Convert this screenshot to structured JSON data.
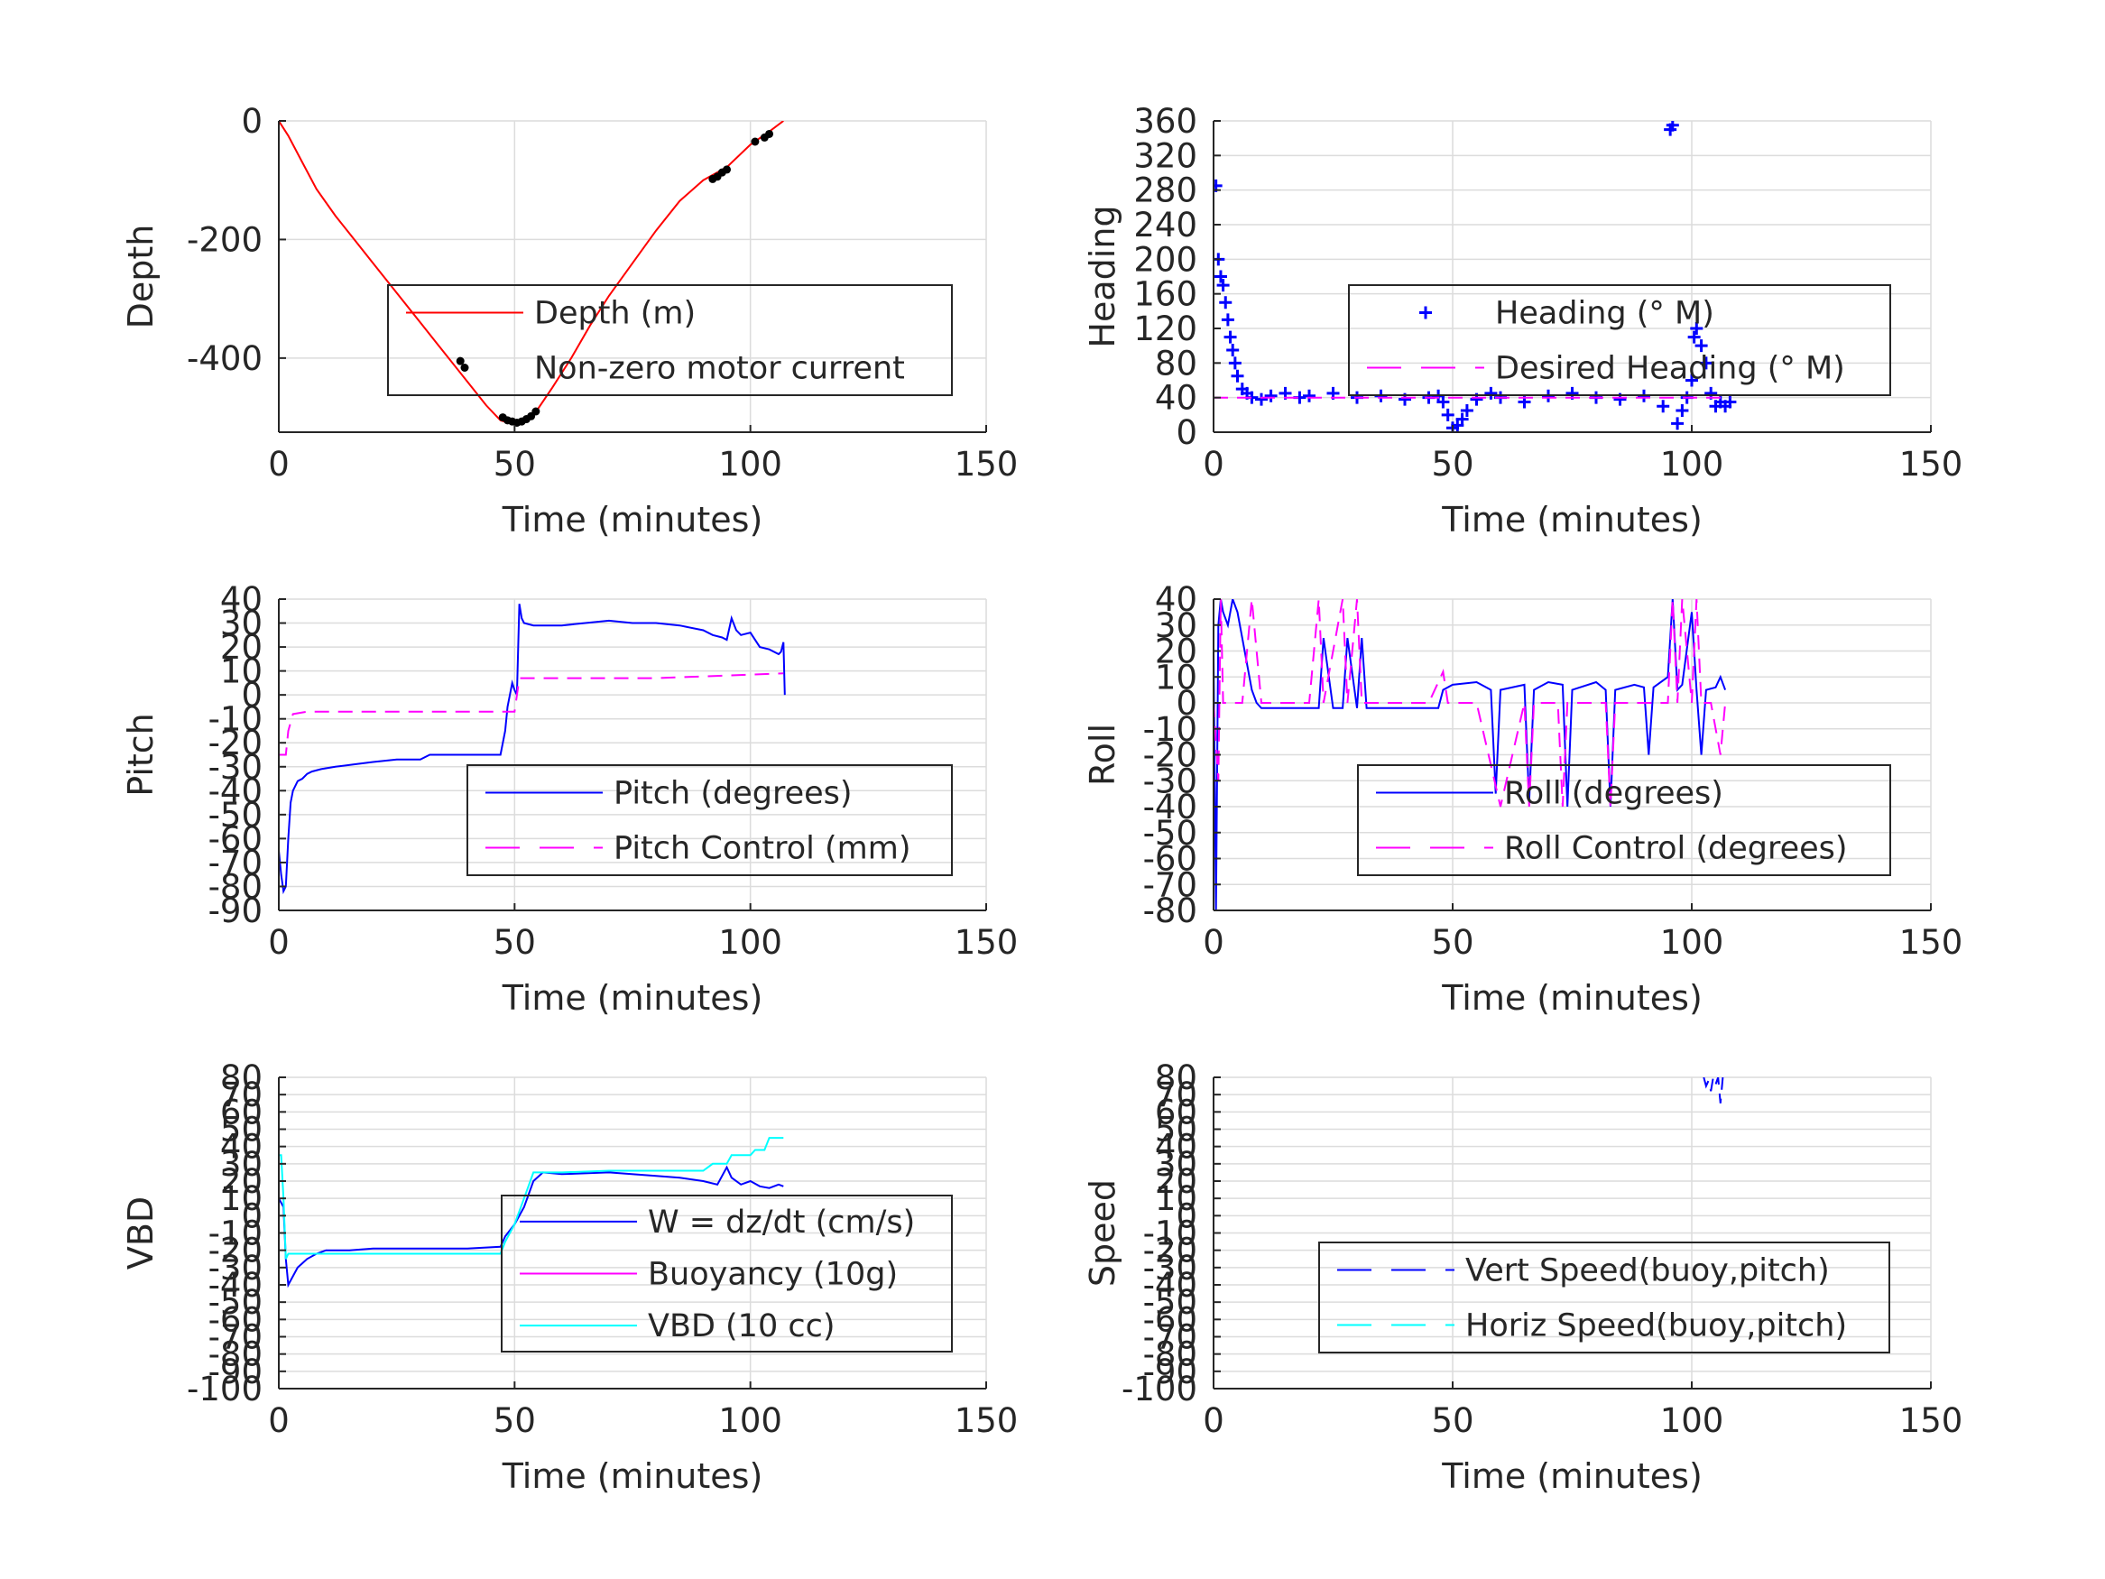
{
  "chart_data": [
    {
      "type": "line",
      "xlabel": "Time (minutes)",
      "ylabel": "Depth",
      "xlim": [
        0,
        150
      ],
      "ylim": [
        -525,
        0
      ],
      "xticks": [
        0,
        50,
        100,
        150
      ],
      "yticks": [
        0,
        -200,
        -400
      ],
      "ytick_labels": [
        "0",
        "-200",
        "-400"
      ],
      "legend_placement": "center-right",
      "series": [
        {
          "name": "Depth (m)",
          "style": "solid",
          "color": "#ff0000",
          "x": [
            0,
            2,
            5,
            8,
            12,
            16,
            20,
            25,
            30,
            35,
            40,
            44,
            47,
            49,
            50,
            51,
            52,
            53,
            54,
            55,
            58,
            62,
            66,
            70,
            75,
            80,
            85,
            90,
            95,
            100,
            104,
            107
          ],
          "y": [
            0,
            -25,
            -70,
            -115,
            -160,
            -200,
            -240,
            -290,
            -340,
            -390,
            -440,
            -480,
            -505,
            -510,
            -511,
            -510,
            -506,
            -500,
            -494,
            -485,
            -450,
            -400,
            -345,
            -295,
            -240,
            -185,
            -135,
            -100,
            -78,
            -40,
            -18,
            0
          ]
        },
        {
          "name": "Non-zero motor current",
          "style": "dots",
          "color": "#000000",
          "x": [
            38.5,
            47.5,
            48.5,
            49.5,
            50.5,
            51.5,
            52.5,
            53.5,
            54.5,
            92,
            93,
            94,
            95,
            101,
            103,
            104
          ],
          "y": [
            -405,
            -500,
            -505,
            -507,
            -509,
            -507,
            -503,
            -498,
            -490,
            -98,
            -94,
            -87,
            -82,
            -35,
            -28,
            -22
          ]
        }
      ]
    },
    {
      "type": "line",
      "xlabel": "Time (minutes)",
      "ylabel": "Heading",
      "xlim": [
        0,
        150
      ],
      "ylim": [
        0,
        360
      ],
      "xticks": [
        0,
        50,
        100,
        150
      ],
      "yticks": [
        0,
        40,
        80,
        120,
        160,
        200,
        240,
        280,
        320,
        360
      ],
      "ytick_labels": [
        "0",
        "40",
        "80",
        "120",
        "160",
        "200",
        "240",
        "280",
        "320",
        "360"
      ],
      "legend_placement": "center-right",
      "series": [
        {
          "name": "Heading (° M)",
          "style": "plus",
          "color": "#0000ff",
          "x": [
            0.5,
            1,
            1.5,
            2,
            2.5,
            3,
            3.5,
            4,
            4.5,
            5,
            6,
            7,
            8,
            10,
            12,
            15,
            18,
            20,
            25,
            30,
            35,
            40,
            45,
            47,
            48,
            49,
            50,
            51,
            52,
            53,
            55,
            58,
            60,
            65,
            70,
            75,
            80,
            85,
            90,
            94,
            95.5,
            96,
            97,
            98,
            99,
            100,
            100.5,
            101,
            102,
            103,
            104,
            105,
            106,
            107,
            108
          ],
          "y": [
            285,
            200,
            180,
            170,
            150,
            130,
            110,
            95,
            80,
            65,
            50,
            45,
            40,
            38,
            42,
            45,
            40,
            42,
            45,
            40,
            42,
            38,
            40,
            42,
            35,
            20,
            5,
            8,
            15,
            25,
            38,
            45,
            40,
            35,
            42,
            45,
            40,
            38,
            42,
            30,
            350,
            355,
            10,
            25,
            40,
            60,
            110,
            120,
            100,
            80,
            45,
            30,
            35,
            30,
            35
          ]
        },
        {
          "name": "Desired Heading (° M)",
          "style": "dashed",
          "color": "#ff00ff",
          "x": [
            0,
            108
          ],
          "y": [
            40,
            40
          ]
        }
      ]
    },
    {
      "type": "line",
      "xlabel": "Time (minutes)",
      "ylabel": "Pitch",
      "xlim": [
        0,
        150
      ],
      "ylim": [
        -90,
        40
      ],
      "xticks": [
        0,
        50,
        100,
        150
      ],
      "yticks": [
        40,
        30,
        20,
        10,
        0,
        -10,
        -20,
        -30,
        -40,
        -50,
        -60,
        -70,
        -80,
        -90
      ],
      "ytick_labels": [
        "40",
        "30",
        "20",
        "10",
        "0",
        "-10",
        "-20",
        "-30",
        "-40",
        "-50",
        "-60",
        "-70",
        "-80",
        "-90"
      ],
      "legend_placement": "bottom-right",
      "series": [
        {
          "name": "Pitch (degrees)",
          "style": "solid",
          "color": "#0000ff",
          "x": [
            0,
            0.5,
            1,
            1.5,
            2,
            2.5,
            3,
            4,
            5,
            6,
            7,
            9,
            12,
            16,
            20,
            25,
            30,
            32,
            40,
            47,
            48,
            48.5,
            49,
            49.5,
            50,
            50.5,
            51,
            51.5,
            52,
            54,
            60,
            65,
            70,
            75,
            80,
            85,
            90,
            92,
            94,
            95,
            96,
            97,
            98,
            100,
            102,
            104,
            106,
            106.5,
            107,
            107.3
          ],
          "y": [
            -65,
            -75,
            -82,
            -80,
            -60,
            -45,
            -40,
            -36,
            -35,
            -33,
            -32,
            -31,
            -30,
            -29,
            -28,
            -27,
            -27,
            -25,
            -25,
            -25,
            -15,
            -5,
            0,
            5,
            2,
            0,
            38,
            32,
            30,
            29,
            29,
            30,
            31,
            30,
            30,
            29,
            27,
            25,
            24,
            23,
            32,
            27,
            25,
            26,
            20,
            19,
            17,
            18,
            22,
            0
          ]
        },
        {
          "name": "Pitch Control (mm)",
          "style": "dashed",
          "color": "#ff00ff",
          "x": [
            0,
            1.5,
            2,
            3,
            6,
            30,
            50,
            51,
            80,
            107
          ],
          "y": [
            -25,
            -25,
            -15,
            -8,
            -7,
            -7,
            -7,
            7,
            7,
            9
          ]
        }
      ]
    },
    {
      "type": "line",
      "xlabel": "Time (minutes)",
      "ylabel": "Roll",
      "xlim": [
        0,
        150
      ],
      "ylim": [
        -80,
        40
      ],
      "xticks": [
        0,
        50,
        100,
        150
      ],
      "yticks": [
        40,
        30,
        20,
        10,
        0,
        -10,
        -20,
        -30,
        -40,
        -50,
        -60,
        -70,
        -80
      ],
      "ytick_labels": [
        "40",
        "30",
        "20",
        "10",
        "0",
        "-10",
        "-20",
        "-30",
        "-40",
        "-50",
        "-60",
        "-70",
        "-80"
      ],
      "legend_placement": "bottom-right",
      "series": [
        {
          "name": "Roll (degrees)",
          "style": "solid",
          "color": "#0000ff",
          "x": [
            0,
            0.5,
            1,
            1.5,
            2,
            3,
            4,
            5,
            6,
            7,
            8,
            9,
            10,
            15,
            20,
            22,
            23,
            25,
            27,
            28,
            30,
            31,
            32,
            40,
            47,
            48,
            50,
            55,
            58,
            59,
            60,
            65,
            66,
            67,
            70,
            73,
            74,
            75,
            80,
            82,
            83,
            84,
            88,
            90,
            91,
            92,
            95,
            96,
            97,
            98,
            100,
            101,
            102,
            103,
            105,
            106,
            107
          ],
          "y": [
            20,
            -80,
            30,
            40,
            35,
            30,
            40,
            35,
            25,
            15,
            5,
            0,
            -2,
            -2,
            -2,
            -2,
            25,
            -2,
            -2,
            25,
            -2,
            25,
            -2,
            -2,
            -2,
            5,
            7,
            8,
            5,
            -35,
            5,
            7,
            -38,
            5,
            8,
            7,
            -40,
            5,
            8,
            5,
            -40,
            5,
            7,
            6,
            -20,
            6,
            10,
            40,
            5,
            7,
            35,
            5,
            -20,
            5,
            6,
            10,
            5
          ]
        },
        {
          "name": "Roll Control (degrees)",
          "style": "dashed",
          "color": "#ff00ff",
          "x": [
            0,
            1,
            1.5,
            2,
            4,
            6,
            8,
            10,
            11,
            15,
            20,
            22,
            23,
            27,
            28,
            30,
            31,
            32,
            45,
            48,
            49,
            50,
            55,
            60,
            65,
            66,
            67,
            72,
            73,
            74,
            78,
            82,
            83,
            84,
            90,
            95,
            96,
            97,
            98,
            100,
            101,
            102,
            104,
            106,
            107
          ],
          "y": [
            0,
            -30,
            40,
            0,
            0,
            0,
            40,
            0,
            0,
            0,
            0,
            40,
            0,
            40,
            0,
            40,
            0,
            0,
            0,
            12,
            0,
            0,
            0,
            -40,
            0,
            -40,
            0,
            0,
            -40,
            0,
            0,
            0,
            -40,
            0,
            0,
            0,
            40,
            0,
            40,
            0,
            40,
            0,
            0,
            -20,
            0
          ]
        }
      ]
    },
    {
      "type": "line",
      "xlabel": "Time (minutes)",
      "ylabel": "VBD",
      "xlim": [
        0,
        150
      ],
      "ylim": [
        -100,
        80
      ],
      "xticks": [
        0,
        50,
        100,
        150
      ],
      "yticks": [
        80,
        70,
        60,
        50,
        40,
        30,
        20,
        10,
        0,
        -10,
        -20,
        -30,
        -40,
        -50,
        -60,
        -70,
        -80,
        -90,
        -100
      ],
      "ytick_labels": [
        "80",
        "70",
        "60",
        "50",
        "40",
        "30",
        "20",
        "10",
        "0",
        "-10",
        "-20",
        "-30",
        "-40",
        "-50",
        "-60",
        "-70",
        "-80",
        "-90",
        "-100"
      ],
      "legend_placement": "center-right",
      "series": [
        {
          "name": "W = dz/dt (cm/s)",
          "style": "solid",
          "color": "#0000ff",
          "x": [
            0,
            1,
            1.5,
            2,
            3,
            4,
            6,
            8,
            10,
            15,
            20,
            30,
            40,
            47,
            48,
            50,
            52,
            54,
            56,
            60,
            70,
            80,
            85,
            90,
            93,
            95,
            96,
            98,
            100,
            102,
            104,
            106,
            107
          ],
          "y": [
            10,
            5,
            -25,
            -40,
            -35,
            -30,
            -25,
            -22,
            -20,
            -20,
            -19,
            -19,
            -19,
            -18,
            -12,
            -5,
            5,
            20,
            25,
            24,
            25,
            23,
            22,
            20,
            18,
            28,
            22,
            18,
            20,
            17,
            16,
            18,
            17
          ]
        },
        {
          "name": "Buoyancy (10g)",
          "style": "solid",
          "color": "#ff00ff",
          "x": [],
          "y": []
        },
        {
          "name": "VBD (10 cc)",
          "style": "solid",
          "color": "#00ffff",
          "x": [
            0,
            0.5,
            1,
            1.5,
            2,
            3,
            5,
            10,
            20,
            30,
            47,
            48,
            50,
            52,
            54,
            56,
            60,
            70,
            80,
            90,
            92,
            95,
            96,
            100,
            101,
            103,
            104,
            106,
            107
          ],
          "y": [
            35,
            35,
            10,
            -25,
            -22,
            -22,
            -22,
            -22,
            -22,
            -22,
            -22,
            -15,
            -5,
            10,
            25,
            25,
            25,
            26,
            26,
            26,
            30,
            30,
            35,
            35,
            38,
            38,
            45,
            45,
            45
          ]
        }
      ]
    },
    {
      "type": "line",
      "xlabel": "Time (minutes)",
      "ylabel": "Speed",
      "xlim": [
        0,
        150
      ],
      "ylim": [
        -100,
        80
      ],
      "xticks": [
        0,
        50,
        100,
        150
      ],
      "yticks": [
        80,
        70,
        60,
        50,
        40,
        30,
        20,
        10,
        0,
        -10,
        -20,
        -30,
        -40,
        -50,
        -60,
        -70,
        -80,
        -90,
        -100
      ],
      "ytick_labels": [
        "80",
        "70",
        "60",
        "50",
        "40",
        "30",
        "20",
        "10",
        "0",
        "-10",
        "-20",
        "-30",
        "-40",
        "-50",
        "-60",
        "-70",
        "-80",
        "-90",
        "-100"
      ],
      "legend_placement": "bottom-right",
      "series": [
        {
          "name": "Vert Speed(buoy,pitch)",
          "style": "dashed",
          "color": "#0000ff",
          "x": [
            102.5,
            103,
            103.5,
            104,
            104.5,
            105,
            105.5,
            106,
            106.5
          ],
          "y": [
            80,
            75,
            78,
            72,
            80,
            76,
            80,
            65,
            80
          ]
        },
        {
          "name": "Horiz Speed(buoy,pitch)",
          "style": "dashed",
          "color": "#00ffff",
          "x": [],
          "y": []
        }
      ]
    }
  ]
}
